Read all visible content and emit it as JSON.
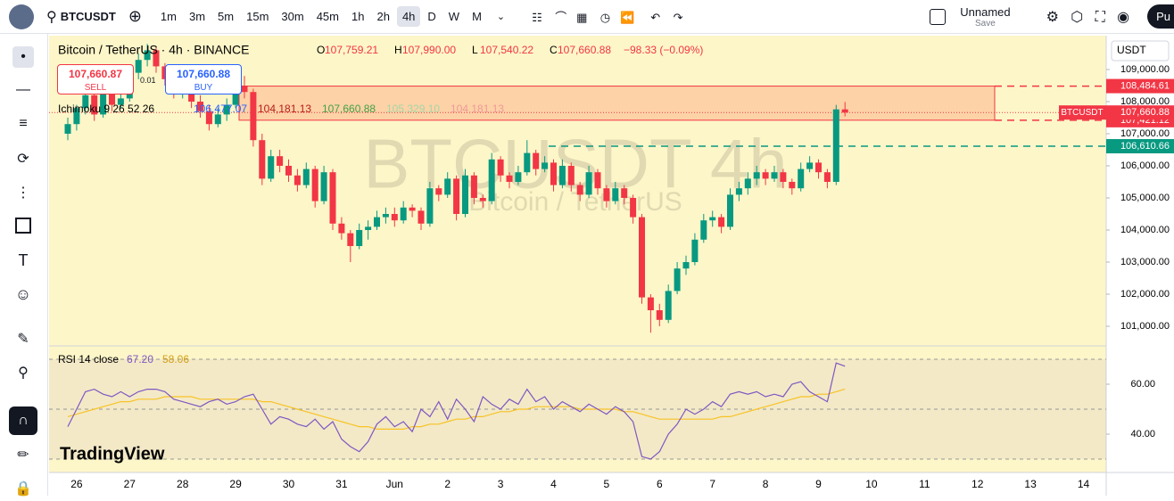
{
  "toolbar": {
    "symbol": "BTCUSDT",
    "intervals": [
      "1m",
      "3m",
      "5m",
      "15m",
      "30m",
      "45m",
      "1h",
      "2h",
      "4h",
      "D",
      "W",
      "M"
    ],
    "active_interval_index": 8,
    "layout_name": "Unnamed",
    "save": "Save",
    "profile": "Pu"
  },
  "chart": {
    "legend": {
      "title": "Bitcoin / TetherUS · 4h · BINANCE",
      "ohlc": [
        {
          "label": "O",
          "value": "107,759.21"
        },
        {
          "label": "H",
          "value": "107,990.00"
        },
        {
          "label": "L",
          "value": "107,540.22"
        },
        {
          "label": "C",
          "value": "107,660.88"
        }
      ],
      "change": "−98.33 (−0.09%)"
    },
    "sell": {
      "price": "107,660.87",
      "label": "SELL"
    },
    "buy": {
      "price": "107,660.88",
      "label": "BUY"
    },
    "spread": "0.01",
    "ichimoku": {
      "label": "Ichimoku 9 26 52 26",
      "values": [
        "106,477.07",
        "104,181.13",
        "107,660.88",
        "105,329.10",
        "104,181.13"
      ]
    },
    "watermark": {
      "symbol": "BTCUSDT 4h",
      "name": "Bitcoin / TetherUS"
    },
    "currency": "USDT",
    "brand": "TradingView",
    "up_color": "#089981",
    "down_color": "#f23645",
    "ylim": [
      100389,
      110056
    ],
    "yticks": [
      {
        "value": 101000,
        "label": "101,000.00"
      },
      {
        "value": 102000,
        "label": "102,000.00"
      },
      {
        "value": 103000,
        "label": "103,000.00"
      },
      {
        "value": 104000,
        "label": "104,000.00"
      },
      {
        "value": 105000,
        "label": "105,000.00"
      },
      {
        "value": 106000,
        "label": "106,000.00"
      },
      {
        "value": 107000,
        "label": "107,000.00"
      },
      {
        "value": 108000,
        "label": "108,000.00"
      },
      {
        "value": 109000,
        "label": "109,000.00"
      }
    ],
    "candles": [
      [
        107000,
        107500,
        106800,
        107300
      ],
      [
        107300,
        107900,
        107100,
        107800
      ],
      [
        107800,
        108400,
        107600,
        108200
      ],
      [
        108200,
        108300,
        107400,
        107600
      ],
      [
        107600,
        108500,
        107500,
        108300
      ],
      [
        108300,
        108400,
        107700,
        107900
      ],
      [
        107900,
        108300,
        107800,
        108100
      ],
      [
        108100,
        109100,
        108000,
        108900
      ],
      [
        108900,
        109500,
        108700,
        109300
      ],
      [
        109300,
        109800,
        109100,
        109600
      ],
      [
        109600,
        109700,
        108900,
        109100
      ],
      [
        109100,
        109200,
        108500,
        108700
      ],
      [
        108700,
        108800,
        108100,
        108300
      ],
      [
        108300,
        108800,
        108100,
        108600
      ],
      [
        108600,
        108700,
        107800,
        108000
      ],
      [
        108000,
        108200,
        107500,
        107700
      ],
      [
        107700,
        107900,
        107100,
        107300
      ],
      [
        107300,
        107800,
        107200,
        107600
      ],
      [
        107600,
        108100,
        107400,
        107900
      ],
      [
        107900,
        108700,
        107800,
        108500
      ],
      [
        108500,
        108800,
        108100,
        108300
      ],
      [
        108300,
        108400,
        106600,
        106800
      ],
      [
        106800,
        107000,
        105400,
        105600
      ],
      [
        105600,
        106500,
        105500,
        106300
      ],
      [
        106300,
        106500,
        105800,
        106000
      ],
      [
        106000,
        106200,
        105500,
        105700
      ],
      [
        105700,
        105900,
        105200,
        105400
      ],
      [
        105400,
        106100,
        105300,
        105900
      ],
      [
        105900,
        106000,
        104700,
        104900
      ],
      [
        104900,
        106000,
        104800,
        105800
      ],
      [
        105800,
        105900,
        104000,
        104200
      ],
      [
        104200,
        104400,
        103700,
        103900
      ],
      [
        103900,
        104000,
        103000,
        103500
      ],
      [
        103500,
        104200,
        103400,
        104000
      ],
      [
        104000,
        104300,
        103700,
        104100
      ],
      [
        104100,
        104600,
        104000,
        104400
      ],
      [
        104400,
        104700,
        104200,
        104500
      ],
      [
        104500,
        104700,
        104100,
        104300
      ],
      [
        104300,
        104900,
        104200,
        104700
      ],
      [
        104700,
        104800,
        104400,
        104600
      ],
      [
        104600,
        104700,
        104000,
        104200
      ],
      [
        104200,
        105500,
        104100,
        105300
      ],
      [
        105300,
        105400,
        104900,
        105100
      ],
      [
        105100,
        105800,
        105000,
        105600
      ],
      [
        105600,
        105700,
        104300,
        104500
      ],
      [
        104500,
        105900,
        104400,
        105700
      ],
      [
        105700,
        105800,
        104800,
        105000
      ],
      [
        105000,
        105100,
        104700,
        104900
      ],
      [
        104900,
        106400,
        104800,
        106200
      ],
      [
        106200,
        106300,
        105500,
        105700
      ],
      [
        105700,
        105800,
        105300,
        105500
      ],
      [
        105500,
        106000,
        105400,
        105800
      ],
      [
        105800,
        106800,
        105700,
        106400
      ],
      [
        106400,
        106500,
        105700,
        105900
      ],
      [
        105900,
        106300,
        105800,
        106100
      ],
      [
        106100,
        106200,
        105200,
        105400
      ],
      [
        105400,
        106200,
        105300,
        106000
      ],
      [
        106000,
        106100,
        105200,
        105400
      ],
      [
        105400,
        105500,
        104900,
        105100
      ],
      [
        105100,
        106000,
        105000,
        105800
      ],
      [
        105800,
        105900,
        105100,
        105300
      ],
      [
        105300,
        105400,
        104700,
        104900
      ],
      [
        104900,
        105500,
        104800,
        105300
      ],
      [
        105300,
        105400,
        104800,
        105000
      ],
      [
        105000,
        105100,
        104200,
        104400
      ],
      [
        104400,
        104500,
        101700,
        101900
      ],
      [
        101900,
        102000,
        100800,
        101500
      ],
      [
        101500,
        101700,
        101000,
        101200
      ],
      [
        101200,
        102300,
        101100,
        102100
      ],
      [
        102100,
        103000,
        102000,
        102800
      ],
      [
        102800,
        103200,
        102600,
        103000
      ],
      [
        103000,
        103900,
        102900,
        103700
      ],
      [
        103700,
        104500,
        103600,
        104300
      ],
      [
        104300,
        104600,
        104100,
        104400
      ],
      [
        104400,
        104500,
        103900,
        104100
      ],
      [
        104100,
        105300,
        104000,
        105100
      ],
      [
        105100,
        105500,
        104900,
        105300
      ],
      [
        105300,
        105800,
        105100,
        105600
      ],
      [
        105600,
        106000,
        105400,
        105800
      ],
      [
        105800,
        105900,
        105400,
        105600
      ],
      [
        105600,
        106000,
        105500,
        105800
      ],
      [
        105800,
        105900,
        105300,
        105500
      ],
      [
        105500,
        105600,
        105100,
        105300
      ],
      [
        105300,
        106100,
        105200,
        105900
      ],
      [
        105900,
        106300,
        105800,
        106100
      ],
      [
        106100,
        106200,
        105600,
        105800
      ],
      [
        105800,
        105900,
        105300,
        105500
      ],
      [
        105500,
        107900,
        105400,
        107759.21
      ],
      [
        107759.21,
        107990,
        107540.22,
        107660.88
      ]
    ],
    "zone": {
      "top": {
        "value": 108484.61,
        "label": "108,484.61"
      },
      "bottom": {
        "value": 107421.12,
        "label": "107,421.12"
      },
      "color": "#f23645"
    },
    "last_price": {
      "value": 107660.88,
      "label": "107,660.88",
      "tag": "BTCUSDT"
    },
    "level": {
      "value": 106610.66,
      "label": "106,610.66",
      "color": "#089981"
    },
    "x_labels": [
      "26",
      "27",
      "28",
      "29",
      "30",
      "31",
      "Jun",
      "2",
      "3",
      "4",
      "5",
      "6",
      "7",
      "8",
      "9",
      "10",
      "11",
      "12",
      "13",
      "14"
    ],
    "rsi": {
      "label": "RSI 14 close",
      "value": "67.20",
      "ma_value": "58.06",
      "color": "#7e57c2",
      "ma_color": "#f7c325",
      "ylim": [
        24.64,
        75.36
      ],
      "bands": [
        70,
        50,
        30
      ],
      "yticks": [
        {
          "value": 60,
          "label": "60.00"
        },
        {
          "value": 40,
          "label": "40.00"
        }
      ],
      "values": [
        43,
        50,
        57,
        58,
        56,
        55,
        57,
        55,
        57,
        58,
        58,
        57,
        54,
        53,
        52,
        51,
        53,
        54,
        52,
        53,
        55,
        56,
        50,
        44,
        47,
        46,
        44,
        43,
        46,
        42,
        45,
        38,
        35,
        33,
        37,
        44,
        47,
        43,
        45,
        41,
        50,
        47,
        53,
        46,
        54,
        50,
        45,
        55,
        52,
        50,
        54,
        52,
        58,
        53,
        55,
        50,
        53,
        51,
        49,
        52,
        50,
        48,
        51,
        49,
        45,
        31,
        30,
        33,
        40,
        44,
        50,
        48,
        50,
        53,
        51,
        56,
        57,
        56,
        57,
        55,
        56,
        55,
        60,
        61,
        57,
        55,
        53,
        68.5,
        67.2
      ],
      "ma": [
        47,
        48,
        49,
        50,
        51,
        52,
        53,
        53,
        54,
        54,
        54,
        55,
        55,
        55,
        55,
        54,
        54,
        54,
        54,
        54,
        54,
        54,
        53,
        53,
        52,
        51,
        50,
        49,
        48,
        47,
        46,
        45,
        44,
        43,
        43,
        42,
        42,
        42,
        42,
        43,
        43,
        44,
        44,
        45,
        46,
        46,
        47,
        47,
        48,
        49,
        49,
        50,
        50,
        51,
        51,
        51,
        51,
        51,
        50,
        50,
        50,
        50,
        50,
        49,
        49,
        48,
        47,
        46,
        46,
        46,
        46,
        46,
        46,
        46,
        47,
        47,
        48,
        49,
        50,
        51,
        52,
        53,
        54,
        55,
        55,
        56,
        56,
        57,
        58.06
      ]
    }
  }
}
